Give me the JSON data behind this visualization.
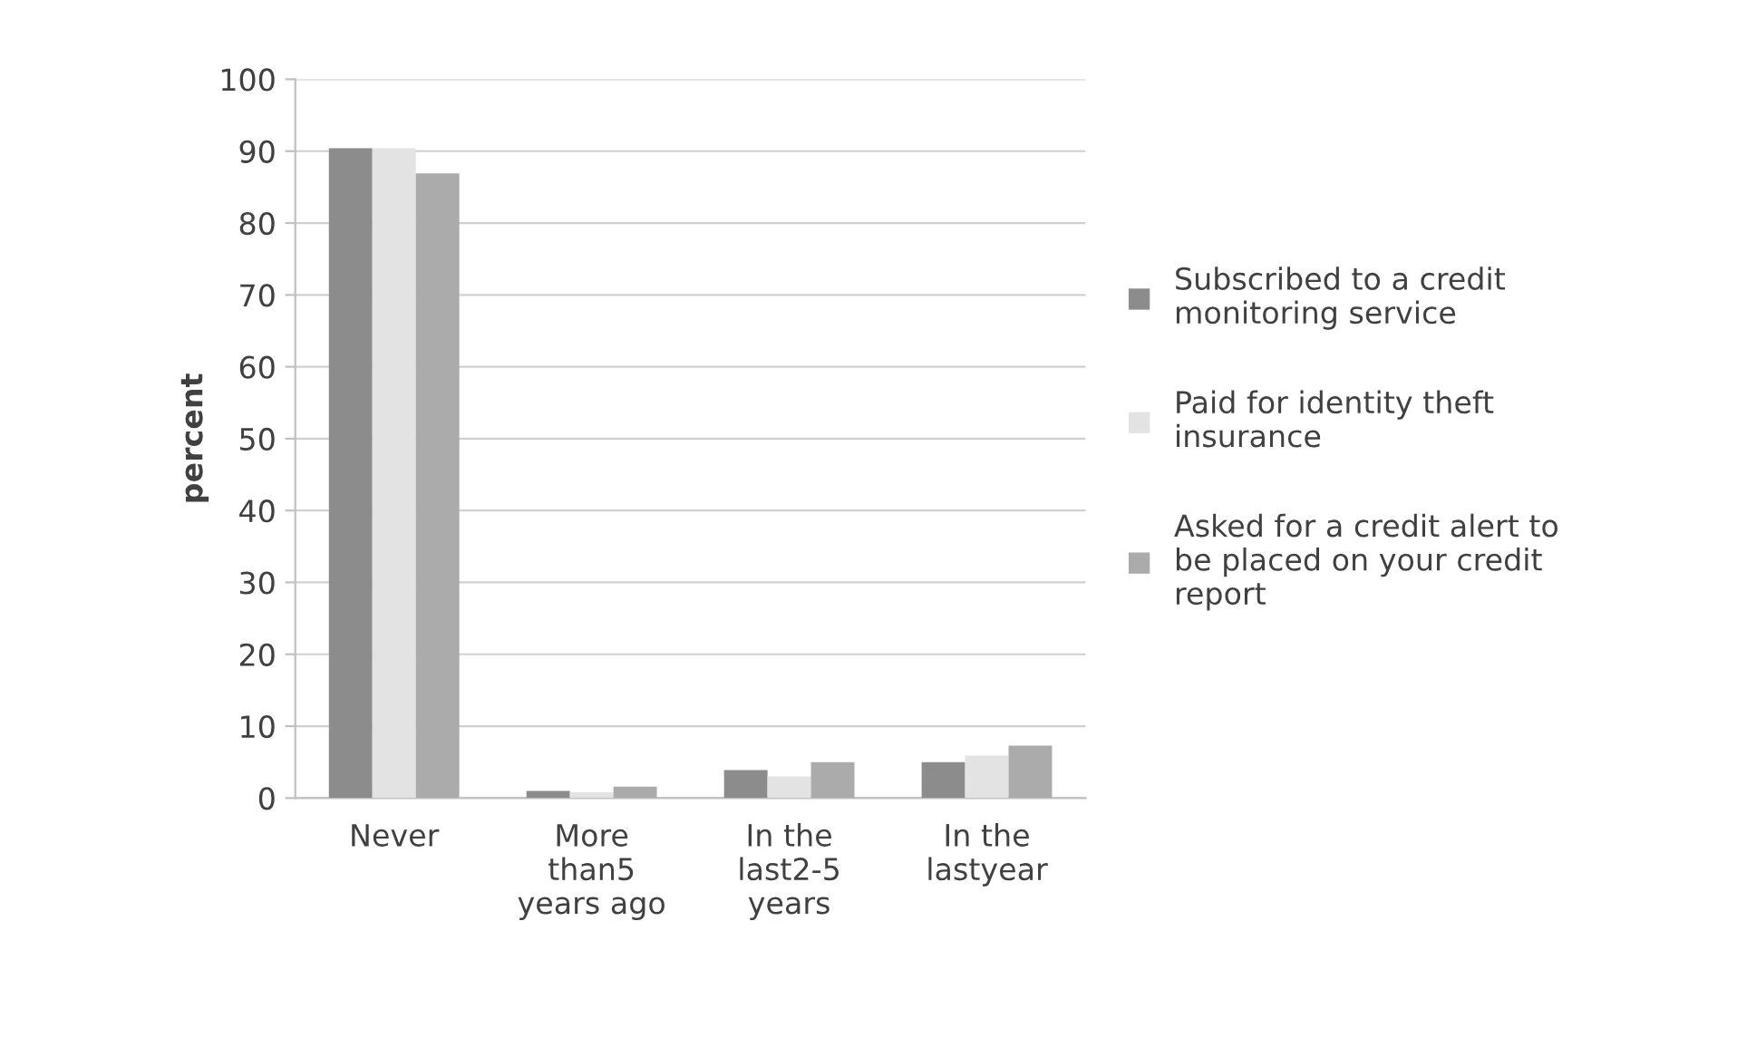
{
  "chart_data": {
    "type": "bar",
    "ylabel": "percent",
    "categories": [
      "Never",
      "More\nthan5\nyears ago",
      "In the\nlast2-5\nyears",
      "In the\nlastyear"
    ],
    "series": [
      {
        "name": "Subscribed to a credit\nmonitoring service",
        "color": "#8c8c8c",
        "values": [
          90.4,
          1.0,
          3.9,
          5.0
        ]
      },
      {
        "name": "Paid for identity theft\ninsurance",
        "color": "#e3e3e3",
        "values": [
          90.4,
          0.8,
          3.0,
          5.9
        ]
      },
      {
        "name": "Asked for a credit alert to\nbe placed on your credit\nreport",
        "color": "#ababab",
        "values": [
          86.9,
          1.6,
          5.0,
          7.3
        ]
      }
    ],
    "ylim": [
      0,
      100
    ],
    "yticks": [
      0,
      10,
      20,
      30,
      40,
      50,
      60,
      70,
      80,
      90,
      100
    ],
    "grid": "y",
    "legend": "right"
  }
}
